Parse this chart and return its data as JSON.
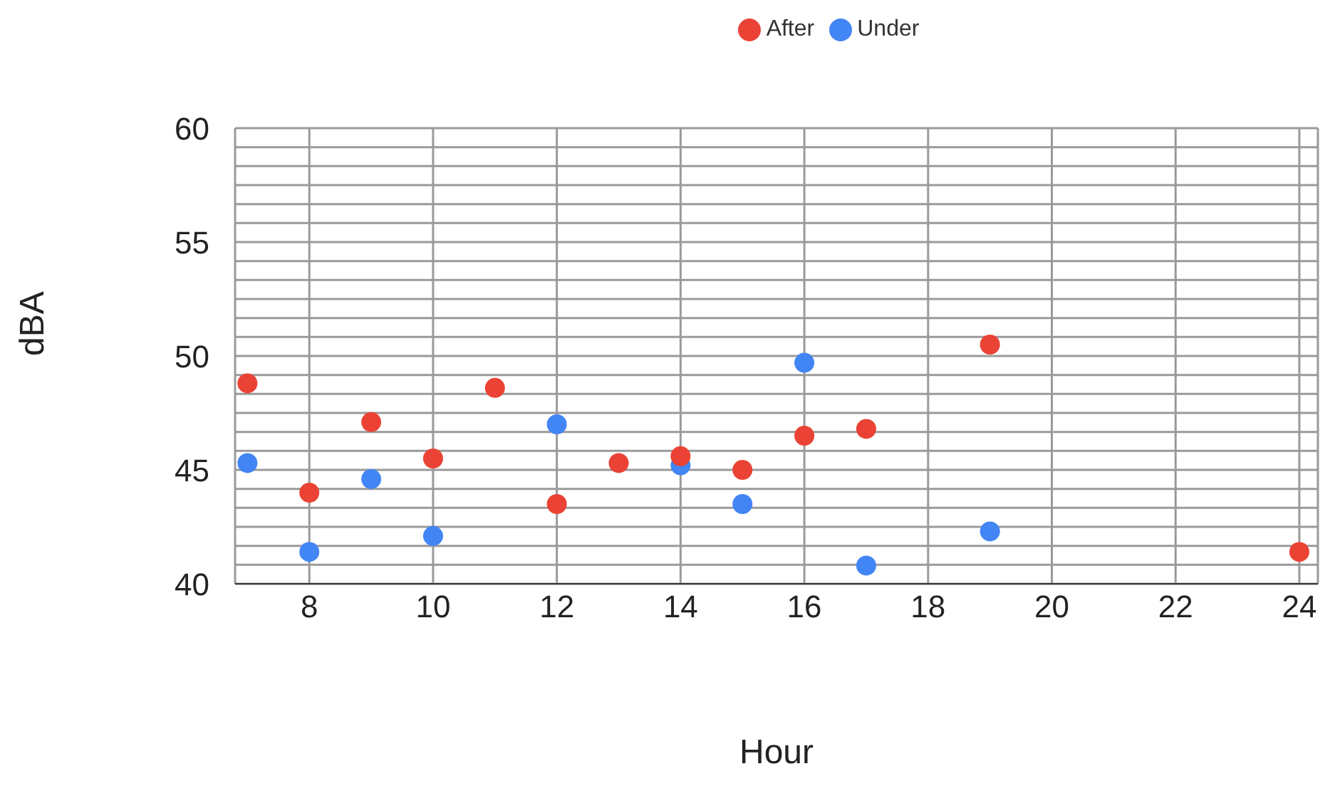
{
  "chart_data": {
    "type": "scatter",
    "xlabel": "Hour",
    "ylabel": "dBA",
    "xlim": [
      6.8,
      24.3
    ],
    "xticks": [
      8,
      10,
      12,
      14,
      16,
      18,
      20,
      22,
      24
    ],
    "ylim": [
      40,
      60
    ],
    "yticks": [
      40,
      {
        "value": 40.833,
        "label": null
      },
      {
        "value": 41.667,
        "label": null
      },
      {
        "value": 42.5,
        "label": null
      },
      {
        "value": 43.333,
        "label": null
      },
      {
        "value": 44.167,
        "label": null
      },
      45,
      {
        "value": 45.833,
        "label": null
      },
      {
        "value": 46.667,
        "label": null
      },
      {
        "value": 47.5,
        "label": null
      },
      {
        "value": 48.333,
        "label": null
      },
      {
        "value": 49.167,
        "label": null
      },
      50,
      {
        "value": 50.833,
        "label": null
      },
      {
        "value": 51.667,
        "label": null
      },
      {
        "value": 52.5,
        "label": null
      },
      {
        "value": 53.333,
        "label": null
      },
      {
        "value": 54.167,
        "label": null
      },
      55,
      {
        "value": 55.833,
        "label": null
      },
      {
        "value": 56.667,
        "label": null
      },
      {
        "value": 57.5,
        "label": null
      },
      {
        "value": 58.333,
        "label": null
      },
      {
        "value": 59.167,
        "label": null
      },
      60
    ],
    "grid": true,
    "legend": "top",
    "marker": "circle",
    "series": [
      {
        "name": "Under",
        "color": "#4285f4",
        "x": [
          7,
          8,
          9,
          10,
          12,
          14,
          15,
          16,
          17,
          19
        ],
        "values": [
          45.3,
          41.4,
          44.6,
          42.1,
          47.0,
          45.2,
          43.5,
          49.7,
          40.8,
          42.3
        ]
      },
      {
        "name": "After",
        "color": "#ea4335",
        "x": [
          7,
          8,
          9,
          10,
          11,
          12,
          13,
          14,
          15,
          16,
          17,
          19,
          24
        ],
        "values": [
          48.8,
          44.0,
          47.1,
          45.5,
          48.6,
          43.5,
          45.3,
          45.6,
          45.0,
          46.5,
          46.8,
          50.5,
          41.4
        ]
      }
    ]
  }
}
